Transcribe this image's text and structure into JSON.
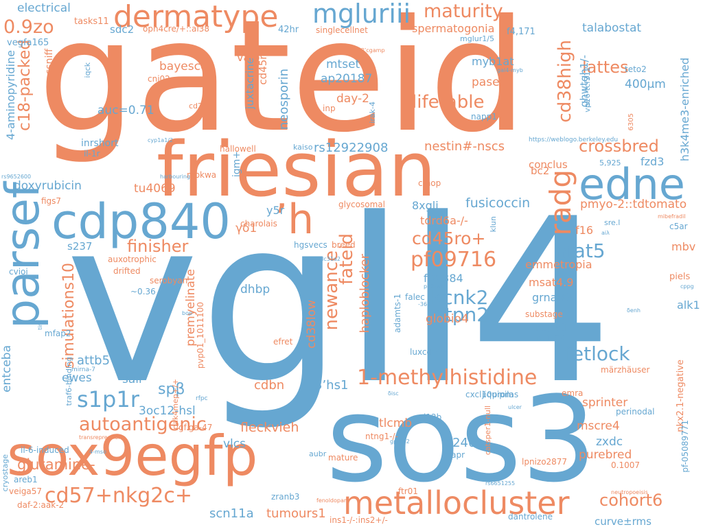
{
  "colors": {
    "blue": "#66a7d1",
    "orange": "#ee8a62"
  },
  "words": [
    {
      "text": "gateid",
      "color": "orange"
    },
    {
      "text": "vgll4",
      "color": "blue"
    },
    {
      "text": "sos3",
      "color": "blue"
    },
    {
      "text": "friesian",
      "color": "orange"
    },
    {
      "text": "sox9egfp",
      "color": "orange"
    },
    {
      "text": "parsef",
      "color": "blue"
    },
    {
      "text": "cdp840",
      "color": "blue"
    },
    {
      "text": "edne",
      "color": "blue"
    },
    {
      "text": "metallocluster",
      "color": "orange"
    },
    {
      "text": "’h",
      "color": "orange"
    },
    {
      "text": "dermatype",
      "color": "orange"
    },
    {
      "text": "cd57+nkg2c+",
      "color": "orange"
    },
    {
      "text": "mgluriii",
      "color": "blue"
    },
    {
      "text": "1-methylhistidine",
      "color": "orange"
    },
    {
      "text": "autoantigenic",
      "color": "orange"
    },
    {
      "text": "cohort6",
      "color": "orange"
    },
    {
      "text": "pf09716",
      "color": "orange"
    },
    {
      "text": "simulations10",
      "color": "orange"
    },
    {
      "text": "c18-packed",
      "color": "orange"
    },
    {
      "text": "crossbred",
      "color": "orange"
    },
    {
      "text": "lifetable",
      "color": "orange"
    },
    {
      "text": "ptpn21",
      "color": "blue"
    },
    {
      "text": "fetlock",
      "color": "blue"
    },
    {
      "text": "s1p1r",
      "color": "blue"
    },
    {
      "text": "0.9zo",
      "color": "orange"
    },
    {
      "text": "maturity",
      "color": "orange"
    },
    {
      "text": "cd38high",
      "color": "orange"
    },
    {
      "text": "radg",
      "color": "orange"
    },
    {
      "text": "nfat5",
      "color": "blue"
    },
    {
      "text": "cd45ro+",
      "color": "orange"
    },
    {
      "text": "kcnk2",
      "color": "blue"
    },
    {
      "text": "newance",
      "color": "orange"
    },
    {
      "text": "fateid",
      "color": "orange"
    },
    {
      "text": "finisher",
      "color": "orange"
    },
    {
      "text": "lattes",
      "color": "orange"
    },
    {
      "text": "spβ",
      "color": "blue"
    },
    {
      "text": "glutamine-",
      "color": "orange"
    },
    {
      "text": "tumours1",
      "color": "orange"
    },
    {
      "text": "scn11a",
      "color": "blue"
    },
    {
      "text": "fleckvieh",
      "color": "orange"
    },
    {
      "text": "premyelinate",
      "color": "orange"
    },
    {
      "text": "doxyrubicin",
      "color": "blue"
    },
    {
      "text": "fusicoccin",
      "color": "blue"
    },
    {
      "text": "pmyo-2::tdtomato",
      "color": "orange"
    },
    {
      "text": "h3k4me3-enriched",
      "color": "blue"
    },
    {
      "text": "4-aminopyridine",
      "color": "blue"
    },
    {
      "text": "neosporin",
      "color": "blue"
    },
    {
      "text": "juxtacrine",
      "color": "blue"
    },
    {
      "text": "haploblocker",
      "color": "orange"
    },
    {
      "text": "cd38low",
      "color": "orange"
    },
    {
      "text": "rs12922908",
      "color": "blue"
    },
    {
      "text": "nestin#-nscs",
      "color": "orange"
    },
    {
      "text": "spermatogonia",
      "color": "orange"
    },
    {
      "text": "talabostat",
      "color": "blue"
    },
    {
      "text": "electrical",
      "color": "blue"
    },
    {
      "text": "ap20187",
      "color": "blue"
    },
    {
      "text": "emmetropia",
      "color": "orange"
    },
    {
      "text": "globio4",
      "color": "orange"
    },
    {
      "text": "sprinter",
      "color": "orange"
    },
    {
      "text": "purebred",
      "color": "orange"
    },
    {
      "text": "mscre4",
      "color": "orange"
    },
    {
      "text": "zxdc",
      "color": "blue"
    },
    {
      "text": "curve±rms",
      "color": "blue"
    },
    {
      "text": "tlcmb",
      "color": "orange"
    },
    {
      "text": "t(240",
      "color": "blue"
    },
    {
      "text": "cdbn",
      "color": "orange"
    },
    {
      "text": "3’hs1",
      "color": "blue"
    },
    {
      "text": "attb5",
      "color": "blue"
    },
    {
      "text": "ewes",
      "color": "blue"
    },
    {
      "text": "salr",
      "color": "blue"
    },
    {
      "text": "3oc12-hsl",
      "color": "blue"
    },
    {
      "text": "vlcs",
      "color": "blue"
    },
    {
      "text": "entceba",
      "color": "blue"
    },
    {
      "text": "auc=0.71",
      "color": "blue"
    },
    {
      "text": "bayescce",
      "color": "orange"
    },
    {
      "text": "mtset",
      "color": "blue"
    },
    {
      "text": "day-2",
      "color": "orange"
    },
    {
      "text": "myb1at",
      "color": "blue"
    },
    {
      "text": "pasef",
      "color": "orange"
    },
    {
      "text": "400μm",
      "color": "blue"
    },
    {
      "text": "ghwtgh1/-",
      "color": "blue"
    },
    {
      "text": "sdc2",
      "color": "blue"
    },
    {
      "text": "tu4069",
      "color": "orange"
    },
    {
      "text": "fzd3",
      "color": "blue"
    },
    {
      "text": "conclus",
      "color": "orange"
    },
    {
      "text": "bc2",
      "color": "orange"
    },
    {
      "text": "f16",
      "color": "orange"
    },
    {
      "text": "mbv",
      "color": "orange"
    },
    {
      "text": "alk1",
      "color": "blue"
    },
    {
      "text": "msat4.9",
      "color": "orange"
    },
    {
      "text": "grna#3",
      "color": "blue"
    },
    {
      "text": "r1881",
      "color": "blue"
    },
    {
      "text": "f[8,384",
      "color": "blue"
    },
    {
      "text": "dhbp",
      "color": "blue"
    },
    {
      "text": "y5r",
      "color": "blue"
    },
    {
      "text": "γδ1",
      "color": "orange"
    },
    {
      "text": "8xgli",
      "color": "blue"
    },
    {
      "text": "tdrd6a-/-",
      "color": "orange"
    },
    {
      "text": "s237",
      "color": "blue"
    },
    {
      "text": "valo",
      "color": "orange"
    },
    {
      "text": "cd45r0",
      "color": "orange"
    },
    {
      "text": "igm+",
      "color": "blue"
    },
    {
      "text": "ssniff",
      "color": "orange"
    },
    {
      "text": "inrshort",
      "color": "blue"
    },
    {
      "text": "tasks11",
      "color": "orange"
    },
    {
      "text": "opn4cre/+::ai38",
      "color": "orange"
    },
    {
      "text": "42hr",
      "color": "blue"
    },
    {
      "text": "singlecellnet",
      "color": "orange"
    },
    {
      "text": "f4,171",
      "color": "blue"
    },
    {
      "text": "mglur1/5",
      "color": "blue"
    },
    {
      "text": "vegfa165",
      "color": "blue"
    },
    {
      "text": "iqck",
      "color": "blue"
    },
    {
      "text": "cnj02",
      "color": "orange"
    },
    {
      "text": "cd24",
      "color": "orange"
    },
    {
      "text": "il-1r",
      "color": "blue"
    },
    {
      "text": "hallowell",
      "color": "orange"
    },
    {
      "text": "kaiso",
      "color": "blue"
    },
    {
      "text": "mokwa",
      "color": "orange"
    },
    {
      "text": "figs7",
      "color": "orange"
    },
    {
      "text": "glycosomal",
      "color": "orange"
    },
    {
      "text": "charolais",
      "color": "orange"
    },
    {
      "text": "hgsvecs",
      "color": "blue"
    },
    {
      "text": "breed",
      "color": "orange"
    },
    {
      "text": "auxotrophic",
      "color": "orange"
    },
    {
      "text": "drifted",
      "color": "orange"
    },
    {
      "text": "serobyan",
      "color": "orange"
    },
    {
      "text": "cvioi",
      "color": "blue"
    },
    {
      "text": "~0.36",
      "color": "blue"
    },
    {
      "text": "mfap2",
      "color": "blue"
    },
    {
      "text": "efret",
      "color": "orange"
    },
    {
      "text": "adamts-1",
      "color": "blue"
    },
    {
      "text": "falec",
      "color": "blue"
    },
    {
      "text": "luxcdabe",
      "color": "blue"
    },
    {
      "text": "jiquipilas",
      "color": "blue"
    },
    {
      "text": "cxcl10prom",
      "color": "blue"
    },
    {
      "text": "emra",
      "color": "orange"
    },
    {
      "text": "nkx2.1-negative",
      "color": "orange"
    },
    {
      "text": "märzhäuser",
      "color": "orange"
    },
    {
      "text": "substage",
      "color": "orange"
    },
    {
      "text": "f=1.89",
      "color": "blue"
    },
    {
      "text": "piels",
      "color": "orange"
    },
    {
      "text": "klun",
      "color": "blue"
    },
    {
      "text": "sre.l",
      "color": "blue"
    },
    {
      "text": "c5ar",
      "color": "blue"
    },
    {
      "text": "teto2",
      "color": "blue"
    },
    {
      "text": "vp16-tcf712",
      "color": "blue"
    },
    {
      "text": "napp1",
      "color": "blue"
    },
    {
      "text": "inp",
      "color": "orange"
    },
    {
      "text": "irak-4",
      "color": "blue"
    },
    {
      "text": "cmop",
      "color": "orange"
    },
    {
      "text": "5,925",
      "color": "blue"
    },
    {
      "text": "https://weblogo.berkeley.edu",
      "color": "blue"
    },
    {
      "text": "i12b",
      "color": "blue"
    },
    {
      "text": "xapr",
      "color": "blue"
    },
    {
      "text": "lpnizo2877",
      "color": "orange"
    },
    {
      "text": "0.1007",
      "color": "orange"
    },
    {
      "text": "pf-05089771",
      "color": "blue"
    },
    {
      "text": "catsper1-null",
      "color": "orange"
    },
    {
      "text": "perinodal",
      "color": "blue"
    },
    {
      "text": "ntng1-/-",
      "color": "orange"
    },
    {
      "text": "mature",
      "color": "orange"
    },
    {
      "text": "aubr",
      "color": "blue"
    },
    {
      "text": "gf.ga-47",
      "color": "orange"
    },
    {
      "text": "il-6-induced",
      "color": "blue"
    },
    {
      "text": "cryostage",
      "color": "blue"
    },
    {
      "text": "areb1",
      "color": "blue"
    },
    {
      "text": "veiga57",
      "color": "orange"
    },
    {
      "text": "daf-2:aak-2",
      "color": "orange"
    },
    {
      "text": "zranb3",
      "color": "blue"
    },
    {
      "text": "ftr01",
      "color": "orange"
    },
    {
      "text": "ins1-/-:ins2+/-",
      "color": "orange"
    },
    {
      "text": "dantrolene",
      "color": "blue"
    },
    {
      "text": "fenoldopam",
      "color": "orange"
    },
    {
      "text": "rs6651255",
      "color": "blue"
    },
    {
      "text": "neutropoeisis",
      "color": "orange"
    },
    {
      "text": "pak4mep+/+",
      "color": "orange"
    },
    {
      "text": "traf6-binding",
      "color": "blue"
    },
    {
      "text": "pvp01_1011100",
      "color": "orange"
    },
    {
      "text": "mirna-7",
      "color": "blue"
    },
    {
      "text": "rfpc",
      "color": "blue"
    },
    {
      "text": "transrepression",
      "color": "orange"
    },
    {
      "text": "4-mso",
      "color": "blue"
    },
    {
      "text": "gpr142",
      "color": "blue"
    },
    {
      "text": "ulcer",
      "color": "blue"
    },
    {
      "text": "δisc",
      "color": "blue"
    },
    {
      "text": "-368",
      "color": "blue"
    },
    {
      "text": "p53-wt",
      "color": "blue"
    },
    {
      "text": "slc31a2",
      "color": "blue"
    },
    {
      "text": "bop",
      "color": "blue"
    },
    {
      "text": "tir4",
      "color": "blue"
    },
    {
      "text": "δenh",
      "color": "blue"
    },
    {
      "text": "cppg",
      "color": "blue"
    },
    {
      "text": "aiλ",
      "color": "blue"
    },
    {
      "text": "mibefradil",
      "color": "orange"
    },
    {
      "text": "harbouring",
      "color": "blue"
    },
    {
      "text": "rs9652600",
      "color": "blue"
    },
    {
      "text": "cyp1a1/2",
      "color": "blue"
    },
    {
      "text": "gal4-myb",
      "color": "blue"
    },
    {
      "text": "2’3’cgamp",
      "color": "orange"
    },
    {
      "text": "6305",
      "color": "orange"
    }
  ]
}
